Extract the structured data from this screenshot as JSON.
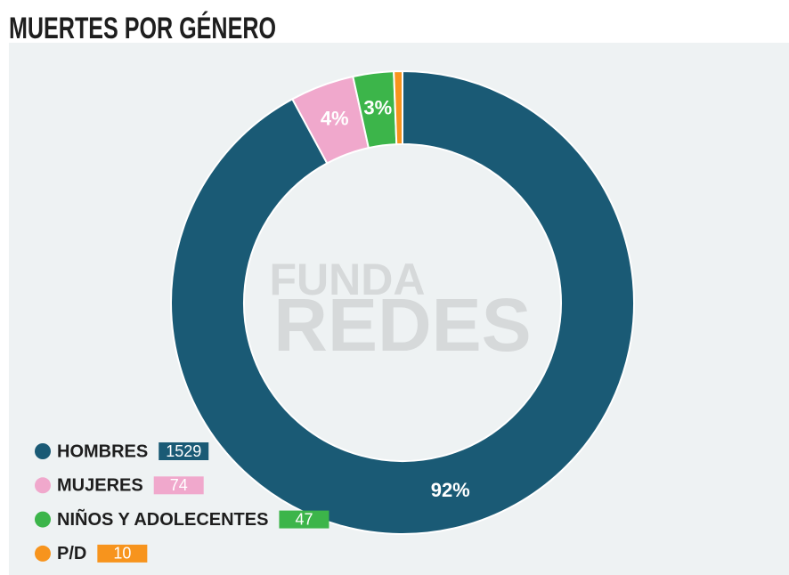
{
  "chart_data": {
    "type": "donut",
    "title": "MUERTES POR GÉNERO",
    "categories": [
      "HOMBRES",
      "MUJERES",
      "NIÑOS Y ADOLECENTES",
      "P/D"
    ],
    "values": [
      1529,
      74,
      47,
      10
    ],
    "value_labels": [
      "92%",
      "4%",
      "3%",
      null
    ],
    "colors": [
      "#1a5a75",
      "#f0a8cc",
      "#3cb54a",
      "#f7941d"
    ],
    "watermark": [
      "FUNDA",
      "REDES"
    ]
  }
}
